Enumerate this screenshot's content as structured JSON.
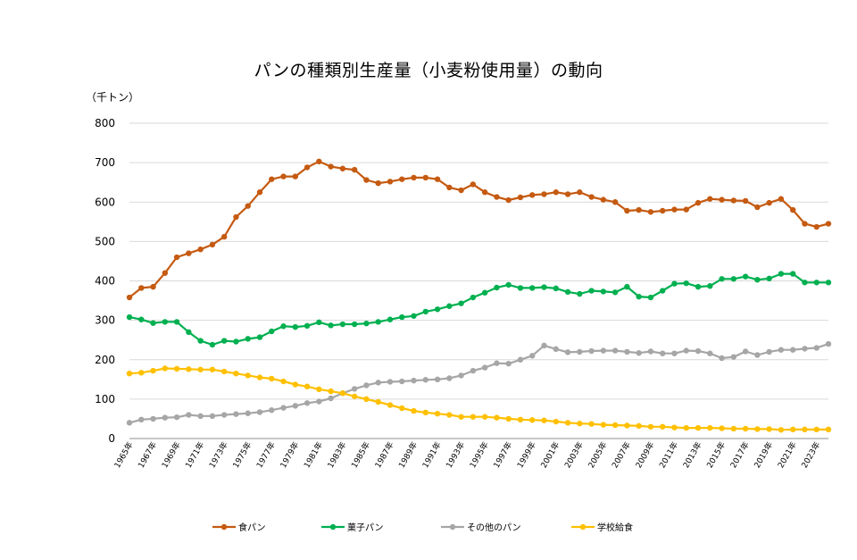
{
  "chart_data": {
    "type": "line",
    "title": "パンの種類別生産量（小麦粉使用量）の動向",
    "unit_label": "（千トン）",
    "ylim": [
      0,
      800
    ],
    "y_ticks": [
      "0",
      "100",
      "200",
      "300",
      "400",
      "500",
      "600",
      "700",
      "800"
    ],
    "x": [
      1965,
      1966,
      1967,
      1968,
      1969,
      1970,
      1971,
      1972,
      1973,
      1974,
      1975,
      1976,
      1977,
      1978,
      1979,
      1980,
      1981,
      1982,
      1983,
      1984,
      1985,
      1986,
      1987,
      1988,
      1989,
      1990,
      1991,
      1992,
      1993,
      1994,
      1995,
      1996,
      1997,
      1998,
      1999,
      2000,
      2001,
      2002,
      2003,
      2004,
      2005,
      2006,
      2007,
      2008,
      2009,
      2010,
      2011,
      2012,
      2013,
      2014,
      2015,
      2016,
      2017,
      2018,
      2019,
      2020,
      2021,
      2022,
      2023,
      2024
    ],
    "x_tick_labels": [
      "1965年",
      "1967年",
      "1969年",
      "1971年",
      "1973年",
      "1975年",
      "1977年",
      "1979年",
      "1981年",
      "1983年",
      "1985年",
      "1987年",
      "1989年",
      "1991年",
      "1993年",
      "1995年",
      "1997年",
      "1999年",
      "2001年",
      "2003年",
      "2005年",
      "2007年",
      "2009年",
      "2011年",
      "2013年",
      "2015年",
      "2017年",
      "2019年",
      "2021年",
      "2023年"
    ],
    "grid": "horizontal",
    "legend_position": "bottom",
    "series": [
      {
        "name": "食パン",
        "color": "#c55a11",
        "values": [
          358,
          382,
          385,
          420,
          460,
          470,
          480,
          492,
          512,
          562,
          590,
          625,
          658,
          665,
          665,
          688,
          703,
          690,
          685,
          682,
          656,
          648,
          652,
          658,
          662,
          662,
          658,
          637,
          630,
          645,
          625,
          613,
          605,
          612,
          618,
          620,
          625,
          620,
          625,
          613,
          606,
          600,
          578,
          580,
          575,
          578,
          581,
          581,
          598,
          608,
          606,
          604,
          603,
          587,
          598,
          608,
          580,
          545,
          537,
          545
        ]
      },
      {
        "name": "菓子パン",
        "color": "#00b050",
        "values": [
          308,
          302,
          293,
          296,
          296,
          270,
          248,
          238,
          248,
          246,
          253,
          257,
          272,
          285,
          283,
          286,
          295,
          287,
          290,
          290,
          292,
          296,
          302,
          308,
          311,
          322,
          328,
          336,
          343,
          358,
          370,
          383,
          390,
          382,
          382,
          384,
          381,
          372,
          367,
          375,
          373,
          371,
          385,
          360,
          358,
          375,
          393,
          394,
          385,
          387,
          405,
          405,
          411,
          403,
          406,
          418,
          418,
          396,
          396,
          396
        ]
      },
      {
        "name": "その他のパン",
        "color": "#a6a6a6",
        "values": [
          40,
          48,
          50,
          53,
          54,
          60,
          57,
          57,
          60,
          62,
          64,
          67,
          72,
          78,
          83,
          90,
          94,
          102,
          115,
          126,
          135,
          142,
          144,
          145,
          147,
          149,
          150,
          153,
          160,
          172,
          180,
          191,
          190,
          200,
          210,
          236,
          227,
          219,
          220,
          222,
          223,
          223,
          220,
          217,
          221,
          216,
          216,
          223,
          222,
          216,
          204,
          207,
          221,
          212,
          220,
          225,
          225,
          228,
          230,
          240
        ]
      },
      {
        "name": "学校給食",
        "color": "#ffc000",
        "values": [
          165,
          167,
          172,
          178,
          177,
          176,
          175,
          175,
          170,
          165,
          160,
          155,
          152,
          145,
          137,
          132,
          125,
          120,
          115,
          107,
          100,
          93,
          85,
          77,
          70,
          66,
          63,
          60,
          55,
          55,
          55,
          53,
          50,
          48,
          47,
          46,
          43,
          40,
          38,
          37,
          35,
          34,
          33,
          32,
          30,
          30,
          28,
          27,
          27,
          27,
          26,
          25,
          25,
          24,
          24,
          22,
          23,
          23,
          23,
          23
        ]
      }
    ]
  }
}
